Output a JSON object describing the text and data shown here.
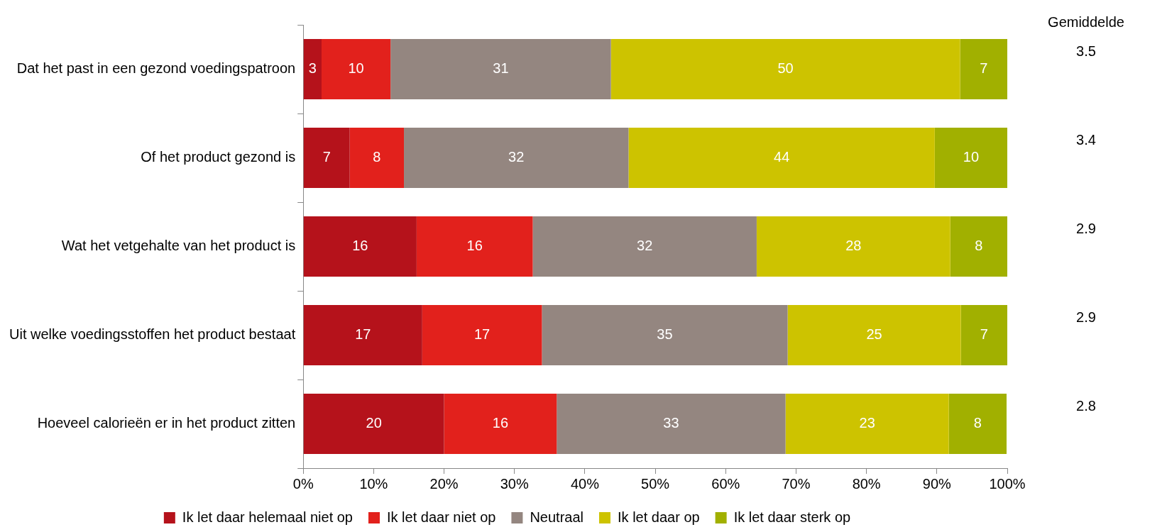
{
  "chart_data": {
    "type": "bar",
    "orientation": "horizontal",
    "stacked": true,
    "legend": "bottom",
    "grid": false,
    "categories": [
      "Dat het past in een gezond voedingspatroon",
      "Of het product gezond is",
      "Wat het vetgehalte van het product is",
      "Uit welke voedingsstoffen het product bestaat",
      "Hoeveel calorieën er in het product zitten"
    ],
    "series": [
      {
        "name": "Ik let daar helemaal niet op",
        "color": "#b5121b",
        "values": [
          2.6,
          6.6,
          16.1,
          16.9,
          20.0
        ],
        "value_labels": [
          "3",
          "7",
          "16",
          "17",
          "20"
        ]
      },
      {
        "name": "Ik let daar niet op",
        "color": "#e2211c",
        "values": [
          9.8,
          7.7,
          16.5,
          17.0,
          16.0
        ],
        "value_labels": [
          "10",
          "8",
          "16",
          "17",
          "16"
        ]
      },
      {
        "name": "Neutraal",
        "color": "#948680",
        "values": [
          31.3,
          31.9,
          31.8,
          34.9,
          32.5
        ],
        "value_labels": [
          "31",
          "32",
          "32",
          "35",
          "33"
        ]
      },
      {
        "name": "Ik let daar op",
        "color": "#cdc300",
        "values": [
          49.6,
          43.5,
          27.5,
          24.6,
          23.2
        ],
        "value_labels": [
          "50",
          "44",
          "28",
          "25",
          "23"
        ]
      },
      {
        "name": "Ik let daar sterk op",
        "color": "#a1b000",
        "values": [
          6.7,
          10.3,
          8.1,
          6.6,
          8.2
        ],
        "value_labels": [
          "7",
          "10",
          "8",
          "7",
          "8"
        ]
      }
    ],
    "xlim": [
      0,
      100
    ],
    "xticks": [
      {
        "value": 0,
        "label": "0%"
      },
      {
        "value": 10,
        "label": "10%"
      },
      {
        "value": 20,
        "label": "20%"
      },
      {
        "value": 30,
        "label": "30%"
      },
      {
        "value": 40,
        "label": "40%"
      },
      {
        "value": 50,
        "label": "50%"
      },
      {
        "value": 60,
        "label": "60%"
      },
      {
        "value": 70,
        "label": "70%"
      },
      {
        "value": 80,
        "label": "80%"
      },
      {
        "value": 90,
        "label": "90%"
      },
      {
        "value": 100,
        "label": "100%"
      }
    ],
    "annotations": [
      "Gemiddelde",
      "3.5",
      "3.4",
      "2.9",
      "2.9",
      "2.8"
    ]
  }
}
